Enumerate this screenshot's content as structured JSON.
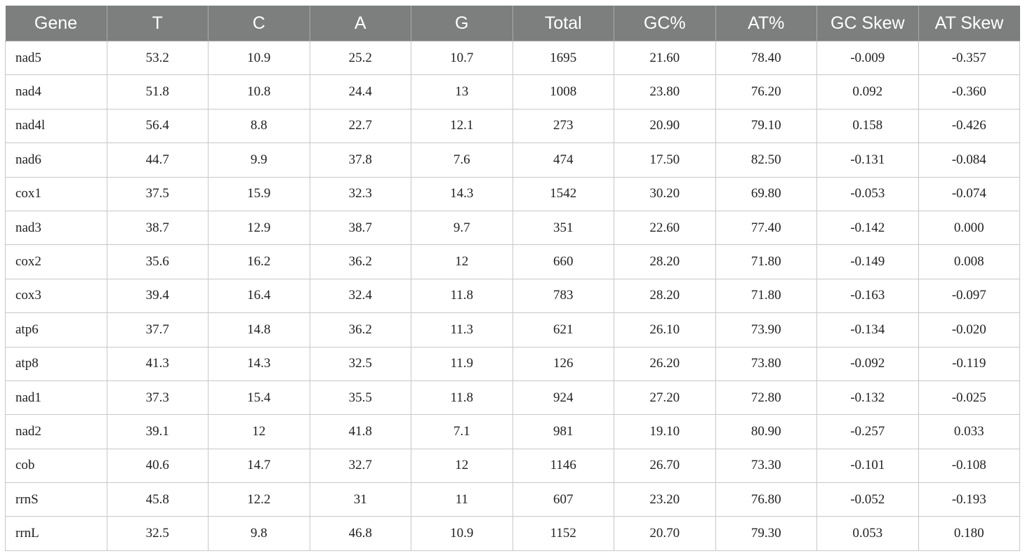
{
  "table": {
    "headers": [
      "Gene",
      "T",
      "C",
      "A",
      "G",
      "Total",
      "GC%",
      "AT%",
      "GC Skew",
      "AT Skew"
    ],
    "rows": [
      [
        "nad5",
        "53.2",
        "10.9",
        "25.2",
        "10.7",
        "1695",
        "21.60",
        "78.40",
        "-0.009",
        "-0.357"
      ],
      [
        "nad4",
        "51.8",
        "10.8",
        "24.4",
        "13",
        "1008",
        "23.80",
        "76.20",
        "0.092",
        "-0.360"
      ],
      [
        "nad4l",
        "56.4",
        "8.8",
        "22.7",
        "12.1",
        "273",
        "20.90",
        "79.10",
        "0.158",
        "-0.426"
      ],
      [
        "nad6",
        "44.7",
        "9.9",
        "37.8",
        "7.6",
        "474",
        "17.50",
        "82.50",
        "-0.131",
        "-0.084"
      ],
      [
        "cox1",
        "37.5",
        "15.9",
        "32.3",
        "14.3",
        "1542",
        "30.20",
        "69.80",
        "-0.053",
        "-0.074"
      ],
      [
        "nad3",
        "38.7",
        "12.9",
        "38.7",
        "9.7",
        "351",
        "22.60",
        "77.40",
        "-0.142",
        "0.000"
      ],
      [
        "cox2",
        "35.6",
        "16.2",
        "36.2",
        "12",
        "660",
        "28.20",
        "71.80",
        "-0.149",
        "0.008"
      ],
      [
        "cox3",
        "39.4",
        "16.4",
        "32.4",
        "11.8",
        "783",
        "28.20",
        "71.80",
        "-0.163",
        "-0.097"
      ],
      [
        "atp6",
        "37.7",
        "14.8",
        "36.2",
        "11.3",
        "621",
        "26.10",
        "73.90",
        "-0.134",
        "-0.020"
      ],
      [
        "atp8",
        "41.3",
        "14.3",
        "32.5",
        "11.9",
        "126",
        "26.20",
        "73.80",
        "-0.092",
        "-0.119"
      ],
      [
        "nad1",
        "37.3",
        "15.4",
        "35.5",
        "11.8",
        "924",
        "27.20",
        "72.80",
        "-0.132",
        "-0.025"
      ],
      [
        "nad2",
        "39.1",
        "12",
        "41.8",
        "7.1",
        "981",
        "19.10",
        "80.90",
        "-0.257",
        "0.033"
      ],
      [
        "cob",
        "40.6",
        "14.7",
        "32.7",
        "12",
        "1146",
        "26.70",
        "73.30",
        "-0.101",
        "-0.108"
      ],
      [
        "rrnS",
        "45.8",
        "12.2",
        "31",
        "11",
        "607",
        "23.20",
        "76.80",
        "-0.052",
        "-0.193"
      ],
      [
        "rrnL",
        "32.5",
        "9.8",
        "46.8",
        "10.9",
        "1152",
        "20.70",
        "79.30",
        "0.053",
        "0.180"
      ]
    ]
  },
  "colors": {
    "header_background": "#7d7f7e",
    "header_text": "#ffffff",
    "grid_lines": "#c8c8c8"
  }
}
